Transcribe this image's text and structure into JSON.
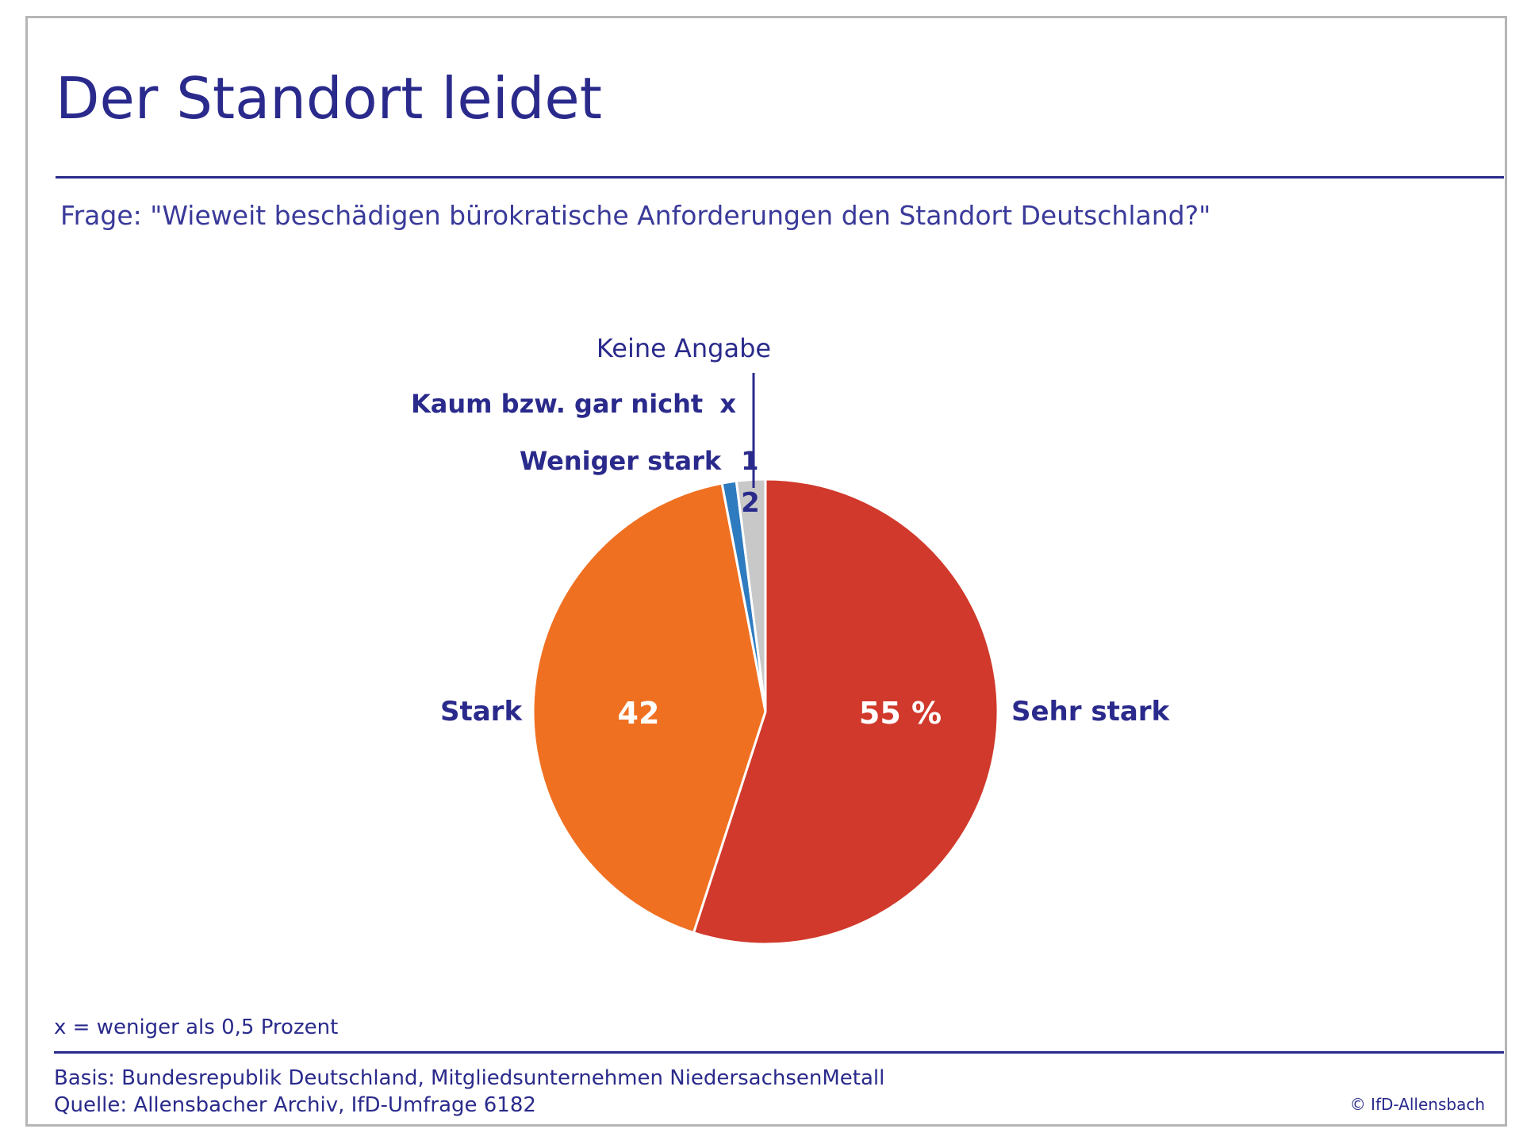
{
  "title": "Der Standort leidet",
  "question": "Frage:  \"Wieweit beschädigen bürokratische Anforderungen den Standort Deutschland?\"",
  "footnote": "x = weniger als 0,5 Prozent",
  "basis": "Basis: Bundesrepublik Deutschland, Mitgliedsunternehmen NiedersachsenMetall",
  "source": "Quelle: Allensbacher Archiv, IfD-Umfrage 6182",
  "copyright": "© IfD-Allensbach",
  "colors": {
    "sehr_stark": "#d0392b",
    "stark": "#f07022",
    "weniger_stark": "#2f7bbf",
    "keine_angabe": "#c8c8c8",
    "text": "#2a2a8c"
  },
  "chart_data": {
    "type": "pie",
    "start": "12 o'clock, clockwise",
    "slices": [
      {
        "label": "Sehr stark",
        "value": 55,
        "value_label": "55 %",
        "color": "#d0392b"
      },
      {
        "label": "Stark",
        "value": 42,
        "value_label": "42",
        "color": "#f07022"
      },
      {
        "label": "Weniger stark",
        "value": 1,
        "value_label": "1",
        "color": "#2f7bbf"
      },
      {
        "label": "Kaum bzw. gar nicht",
        "value": 0,
        "value_label": "x",
        "color": "#2f7bbf"
      },
      {
        "label": "Keine Angabe",
        "value": 2,
        "value_label": "2",
        "color": "#c8c8c8"
      }
    ]
  }
}
